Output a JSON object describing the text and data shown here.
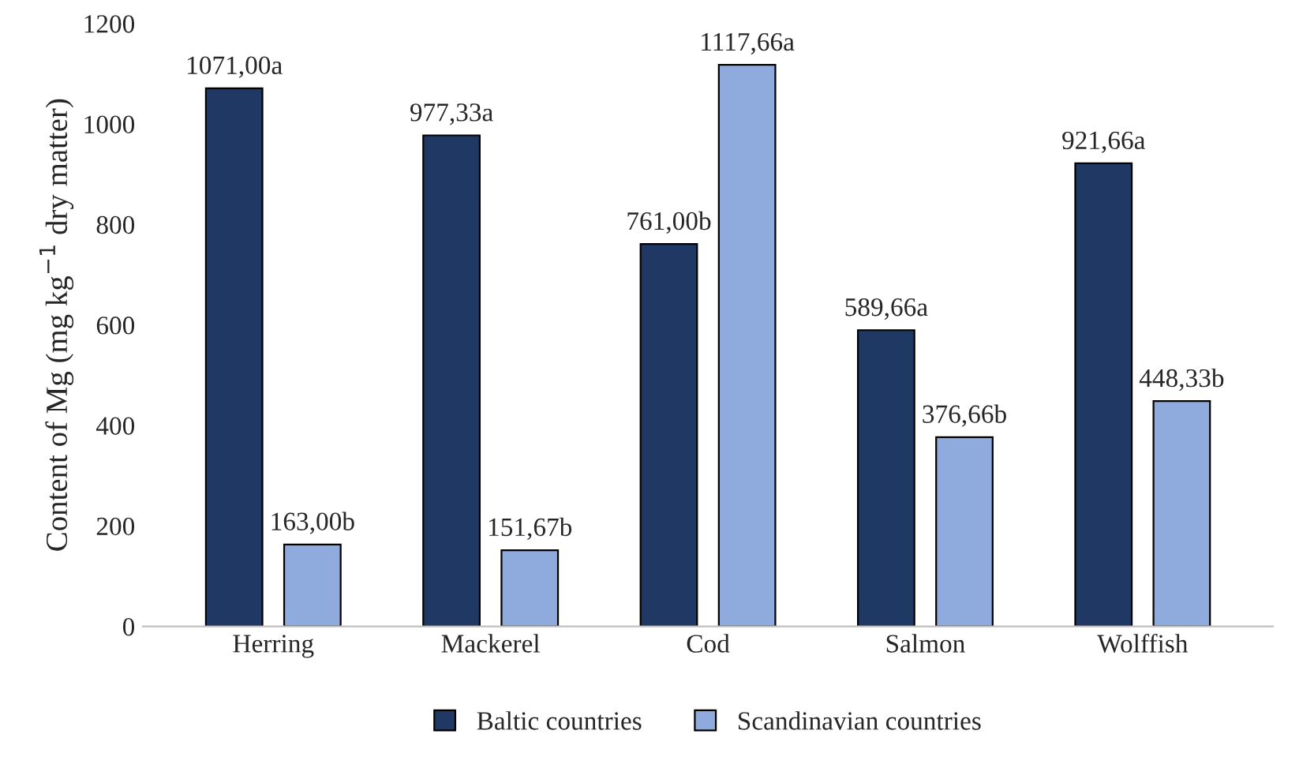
{
  "chart_data": {
    "type": "bar",
    "ylabel": "Content of Mg (mg kg$^{−1}$ dry matter)",
    "categories": [
      "Herring",
      "Mackerel",
      "Cod",
      "Salmon",
      "Wolffish"
    ],
    "series": [
      {
        "name": "Baltic countries",
        "color": "#203864",
        "values": [
          1071.0,
          977.33,
          761.0,
          589.66,
          921.66
        ],
        "value_labels": [
          "1071,00a",
          "977,33a",
          "761,00b",
          "589,66a",
          "921,66a"
        ]
      },
      {
        "name": "Scandinavian countries",
        "color": "#8faadc",
        "values": [
          163.0,
          151.67,
          1117.66,
          376.66,
          448.33
        ],
        "value_labels": [
          "163,00b",
          "151,67b",
          "1117,66a",
          "376,66b",
          "448,33b"
        ]
      }
    ],
    "ylim": [
      0,
      1200
    ],
    "yticks": [
      0,
      200,
      400,
      600,
      800,
      1000,
      1200
    ],
    "grid": false,
    "legend": "bottom"
  }
}
